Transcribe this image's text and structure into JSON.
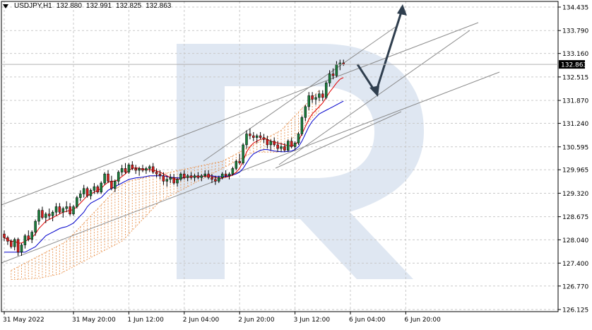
{
  "header": {
    "symbol": "USDJPY,H1",
    "open": "132.880",
    "high": "132.991",
    "low": "132.825",
    "close": "132.863"
  },
  "price_badge": "132.863",
  "colors": {
    "bull": "#1a7f3c",
    "bear": "#d81b1b",
    "tenkan": "#e00000",
    "kijun": "#0000cc",
    "cloud": "#e8904a",
    "channel": "#8c8c8c",
    "arrow": "#2f3e4e",
    "watermark": "#dfe7f2",
    "badge": "#000000"
  },
  "chart_data": {
    "type": "candlestick",
    "ylim": [
      126.125,
      134.435
    ],
    "yticks": [
      "134.435",
      "133.790",
      "133.160",
      "132.515",
      "131.870",
      "131.240",
      "130.595",
      "129.965",
      "129.320",
      "128.675",
      "128.040",
      "127.400",
      "126.770",
      "126.125"
    ],
    "xticks": [
      {
        "label": "31 May 2022",
        "bar": 0
      },
      {
        "label": "31 May 20:00",
        "bar": 20
      },
      {
        "label": "1 Jun 12:00",
        "bar": 36
      },
      {
        "label": "2 Jun 04:00",
        "bar": 52
      },
      {
        "label": "2 Jun 20:00",
        "bar": 68
      },
      {
        "label": "3 Jun 12:00",
        "bar": 84
      },
      {
        "label": "6 Jun 04:00",
        "bar": 100
      },
      {
        "label": "6 Jun 20:00",
        "bar": 116
      }
    ],
    "candles": [
      [
        128.2,
        128.3,
        128.0,
        128.1
      ],
      [
        128.1,
        128.15,
        127.9,
        128.0
      ],
      [
        128.0,
        128.05,
        127.8,
        127.85
      ],
      [
        127.85,
        128.1,
        127.75,
        128.05
      ],
      [
        128.05,
        128.1,
        127.6,
        127.7
      ],
      [
        127.7,
        127.95,
        127.6,
        127.9
      ],
      [
        127.9,
        128.2,
        127.8,
        128.15
      ],
      [
        128.15,
        128.3,
        128.0,
        128.05
      ],
      [
        128.05,
        128.3,
        127.95,
        128.25
      ],
      [
        128.25,
        128.6,
        128.15,
        128.55
      ],
      [
        128.55,
        128.9,
        128.45,
        128.85
      ],
      [
        128.85,
        128.95,
        128.6,
        128.65
      ],
      [
        128.65,
        128.8,
        128.5,
        128.75
      ],
      [
        128.75,
        128.9,
        128.6,
        128.7
      ],
      [
        128.7,
        128.85,
        128.55,
        128.8
      ],
      [
        128.8,
        129.05,
        128.7,
        128.95
      ],
      [
        128.95,
        129.05,
        128.75,
        128.8
      ],
      [
        128.8,
        128.95,
        128.65,
        128.9
      ],
      [
        128.9,
        129.1,
        128.8,
        128.95
      ],
      [
        128.95,
        129.05,
        128.7,
        128.75
      ],
      [
        128.75,
        129.0,
        128.7,
        128.95
      ],
      [
        128.95,
        129.25,
        128.9,
        129.2
      ],
      [
        129.2,
        129.4,
        129.1,
        129.3
      ],
      [
        129.3,
        129.55,
        129.2,
        129.45
      ],
      [
        129.45,
        129.5,
        129.2,
        129.25
      ],
      [
        129.25,
        129.45,
        129.15,
        129.4
      ],
      [
        129.4,
        129.6,
        129.3,
        129.5
      ],
      [
        129.5,
        129.55,
        129.3,
        129.35
      ],
      [
        129.35,
        129.65,
        129.3,
        129.6
      ],
      [
        129.6,
        129.9,
        129.55,
        129.85
      ],
      [
        129.85,
        129.95,
        129.6,
        129.65
      ],
      [
        129.65,
        129.8,
        129.4,
        129.45
      ],
      [
        129.45,
        129.7,
        129.35,
        129.65
      ],
      [
        129.65,
        129.95,
        129.55,
        129.9
      ],
      [
        129.9,
        130.1,
        129.8,
        130.0
      ],
      [
        130.0,
        130.15,
        129.85,
        129.9
      ],
      [
        129.9,
        130.15,
        129.85,
        130.1
      ],
      [
        130.1,
        130.2,
        129.95,
        130.0
      ],
      [
        130.0,
        130.1,
        129.85,
        129.95
      ],
      [
        129.95,
        130.05,
        129.8,
        130.0
      ],
      [
        130.0,
        130.1,
        129.9,
        129.95
      ],
      [
        129.95,
        130.05,
        129.85,
        130.0
      ],
      [
        130.0,
        130.1,
        129.9,
        130.05
      ],
      [
        130.05,
        130.15,
        129.85,
        129.9
      ],
      [
        129.9,
        130.0,
        129.75,
        129.85
      ],
      [
        129.85,
        129.95,
        129.7,
        129.8
      ],
      [
        129.8,
        129.9,
        129.55,
        129.65
      ],
      [
        129.65,
        129.8,
        129.5,
        129.7
      ],
      [
        129.7,
        129.85,
        129.6,
        129.75
      ],
      [
        129.75,
        129.85,
        129.55,
        129.6
      ],
      [
        129.6,
        129.75,
        129.5,
        129.7
      ],
      [
        129.7,
        129.9,
        129.65,
        129.85
      ],
      [
        129.85,
        129.95,
        129.7,
        129.75
      ],
      [
        129.75,
        129.85,
        129.65,
        129.8
      ],
      [
        129.8,
        129.9,
        129.7,
        129.75
      ],
      [
        129.75,
        129.85,
        129.65,
        129.8
      ],
      [
        129.8,
        129.9,
        129.7,
        129.75
      ],
      [
        129.75,
        129.85,
        129.65,
        129.8
      ],
      [
        129.8,
        129.95,
        129.75,
        129.85
      ],
      [
        129.85,
        129.95,
        129.7,
        129.75
      ],
      [
        129.75,
        129.85,
        129.6,
        129.7
      ],
      [
        129.7,
        129.8,
        129.55,
        129.65
      ],
      [
        129.65,
        129.8,
        129.6,
        129.75
      ],
      [
        129.75,
        129.9,
        129.7,
        129.85
      ],
      [
        129.85,
        129.95,
        129.75,
        129.8
      ],
      [
        129.8,
        129.9,
        129.7,
        129.85
      ],
      [
        129.85,
        130.05,
        129.8,
        130.0
      ],
      [
        130.0,
        130.25,
        129.95,
        130.2
      ],
      [
        130.2,
        130.4,
        130.1,
        130.15
      ],
      [
        130.15,
        130.7,
        130.1,
        130.65
      ],
      [
        130.65,
        131.05,
        130.55,
        130.95
      ],
      [
        130.95,
        131.1,
        130.8,
        130.9
      ],
      [
        130.9,
        131.0,
        130.75,
        130.85
      ],
      [
        130.85,
        130.95,
        130.7,
        130.9
      ],
      [
        130.9,
        131.0,
        130.8,
        130.85
      ],
      [
        130.85,
        130.95,
        130.7,
        130.8
      ],
      [
        130.8,
        130.9,
        130.55,
        130.65
      ],
      [
        130.65,
        130.8,
        130.5,
        130.75
      ],
      [
        130.75,
        130.85,
        130.6,
        130.65
      ],
      [
        130.65,
        130.75,
        130.45,
        130.55
      ],
      [
        130.55,
        130.7,
        130.45,
        130.6
      ],
      [
        130.6,
        130.7,
        130.45,
        130.5
      ],
      [
        130.5,
        130.8,
        130.45,
        130.75
      ],
      [
        130.75,
        130.85,
        130.55,
        130.6
      ],
      [
        130.6,
        130.75,
        130.5,
        130.7
      ],
      [
        130.7,
        131.0,
        130.65,
        130.95
      ],
      [
        130.95,
        131.45,
        130.9,
        131.4
      ],
      [
        131.4,
        131.75,
        131.3,
        131.7
      ],
      [
        131.7,
        132.1,
        131.6,
        132.0
      ],
      [
        132.0,
        132.1,
        131.8,
        131.9
      ],
      [
        131.9,
        132.05,
        131.75,
        131.95
      ],
      [
        131.95,
        132.15,
        131.85,
        132.05
      ],
      [
        132.05,
        132.15,
        131.85,
        131.95
      ],
      [
        131.95,
        132.4,
        131.9,
        132.35
      ],
      [
        132.35,
        132.7,
        132.25,
        132.6
      ],
      [
        132.6,
        132.75,
        132.45,
        132.55
      ],
      [
        132.55,
        132.95,
        132.5,
        132.85
      ],
      [
        132.85,
        132.99,
        132.7,
        132.9
      ],
      [
        132.9,
        132.99,
        132.82,
        132.86
      ]
    ],
    "tenkan": [
      128.1,
      128.05,
      128.0,
      128.0,
      127.95,
      127.95,
      128.0,
      128.05,
      128.1,
      128.2,
      128.35,
      128.45,
      128.55,
      128.6,
      128.65,
      128.7,
      128.75,
      128.8,
      128.82,
      128.85,
      128.87,
      128.95,
      129.05,
      129.15,
      129.25,
      129.3,
      129.35,
      129.4,
      129.45,
      129.55,
      129.62,
      129.65,
      129.65,
      129.7,
      129.78,
      129.85,
      129.95,
      130.0,
      130.02,
      130.0,
      129.98,
      129.97,
      129.97,
      129.95,
      129.93,
      129.9,
      129.85,
      129.8,
      129.75,
      129.72,
      129.7,
      129.72,
      129.75,
      129.76,
      129.77,
      129.78,
      129.78,
      129.78,
      129.79,
      129.8,
      129.78,
      129.75,
      129.73,
      129.74,
      129.76,
      129.78,
      129.82,
      129.9,
      130.0,
      130.2,
      130.45,
      130.6,
      130.7,
      130.75,
      130.8,
      130.82,
      130.8,
      130.75,
      130.72,
      130.7,
      130.68,
      130.65,
      130.63,
      130.62,
      130.65,
      130.75,
      130.95,
      131.15,
      131.35,
      131.5,
      131.6,
      131.7,
      131.8,
      131.95,
      132.1,
      132.22,
      132.35,
      132.45,
      132.5
    ],
    "kijun": [
      127.7,
      127.7,
      127.7,
      127.7,
      127.7,
      127.7,
      127.7,
      127.75,
      127.8,
      127.85,
      127.95,
      128.05,
      128.15,
      128.2,
      128.25,
      128.3,
      128.35,
      128.38,
      128.4,
      128.45,
      128.5,
      128.6,
      128.7,
      128.8,
      128.95,
      129.05,
      129.1,
      129.15,
      129.2,
      129.3,
      129.4,
      129.45,
      129.5,
      129.55,
      129.6,
      129.65,
      129.7,
      129.72,
      129.74,
      129.75,
      129.76,
      129.78,
      129.8,
      129.8,
      129.8,
      129.8,
      129.8,
      129.78,
      129.76,
      129.75,
      129.74,
      129.74,
      129.75,
      129.76,
      129.77,
      129.78,
      129.78,
      129.78,
      129.79,
      129.8,
      129.8,
      129.78,
      129.78,
      129.78,
      129.79,
      129.8,
      129.82,
      129.85,
      129.9,
      130.0,
      130.15,
      130.3,
      130.4,
      130.45,
      130.5,
      130.52,
      130.52,
      130.5,
      130.48,
      130.47,
      130.46,
      130.46,
      130.47,
      130.48,
      130.52,
      130.6,
      130.75,
      130.95,
      131.15,
      131.3,
      131.4,
      131.5,
      131.55,
      131.6,
      131.65,
      131.7,
      131.75,
      131.8,
      131.85
    ],
    "cloud_a": [
      127.2,
      127.25,
      127.3,
      127.35,
      127.4,
      127.45,
      127.5,
      127.55,
      127.6,
      127.65,
      127.7,
      127.75,
      127.8,
      127.85,
      127.9,
      127.95,
      128.0,
      128.1,
      128.2,
      128.3,
      128.4,
      128.5,
      128.6,
      128.7,
      128.8,
      128.9,
      129.0,
      129.1,
      129.2,
      129.3,
      129.4,
      129.5,
      129.55,
      129.6,
      129.65,
      129.68,
      129.7,
      129.72,
      129.74,
      129.76,
      129.78,
      129.8,
      129.82,
      129.84,
      129.86,
      129.88,
      129.9,
      129.92,
      129.94,
      129.96,
      129.98,
      130.0,
      130.02,
      130.04,
      130.06,
      130.08,
      130.1,
      130.12,
      130.14,
      130.16,
      130.18,
      130.2,
      130.25,
      130.3,
      130.35,
      130.4,
      130.45,
      130.5,
      130.55,
      130.6,
      130.65,
      130.7,
      130.75,
      130.8,
      130.85,
      130.9,
      130.95,
      131.0,
      131.05,
      131.15,
      131.25,
      131.35,
      131.45,
      131.55,
      131.65,
      131.75,
      131.85,
      131.95,
      132.05,
      132.15
    ],
    "cloud_b": [
      126.95,
      126.95,
      126.95,
      126.96,
      126.96,
      126.97,
      126.97,
      126.98,
      126.98,
      127.0,
      127.02,
      127.04,
      127.06,
      127.08,
      127.1,
      127.15,
      127.2,
      127.25,
      127.3,
      127.35,
      127.4,
      127.45,
      127.5,
      127.55,
      127.6,
      127.65,
      127.7,
      127.75,
      127.8,
      127.85,
      127.9,
      127.95,
      128.0,
      128.1,
      128.2,
      128.3,
      128.4,
      128.5,
      128.6,
      128.7,
      128.8,
      128.9,
      129.0,
      129.1,
      129.15,
      129.2,
      129.25,
      129.3,
      129.35,
      129.4,
      129.45,
      129.5,
      129.55,
      129.6,
      129.65,
      129.7,
      129.75,
      129.8,
      129.85,
      129.9,
      129.95,
      130.0,
      130.05,
      130.1,
      130.15,
      130.2,
      130.25,
      130.3,
      130.35,
      130.4,
      130.45,
      130.45,
      130.45,
      130.45,
      130.45,
      130.45,
      130.45,
      130.45,
      130.5,
      130.6,
      130.7,
      130.8,
      130.9,
      131.0,
      131.1,
      131.2,
      131.3,
      131.4,
      131.5,
      131.6
    ]
  }
}
